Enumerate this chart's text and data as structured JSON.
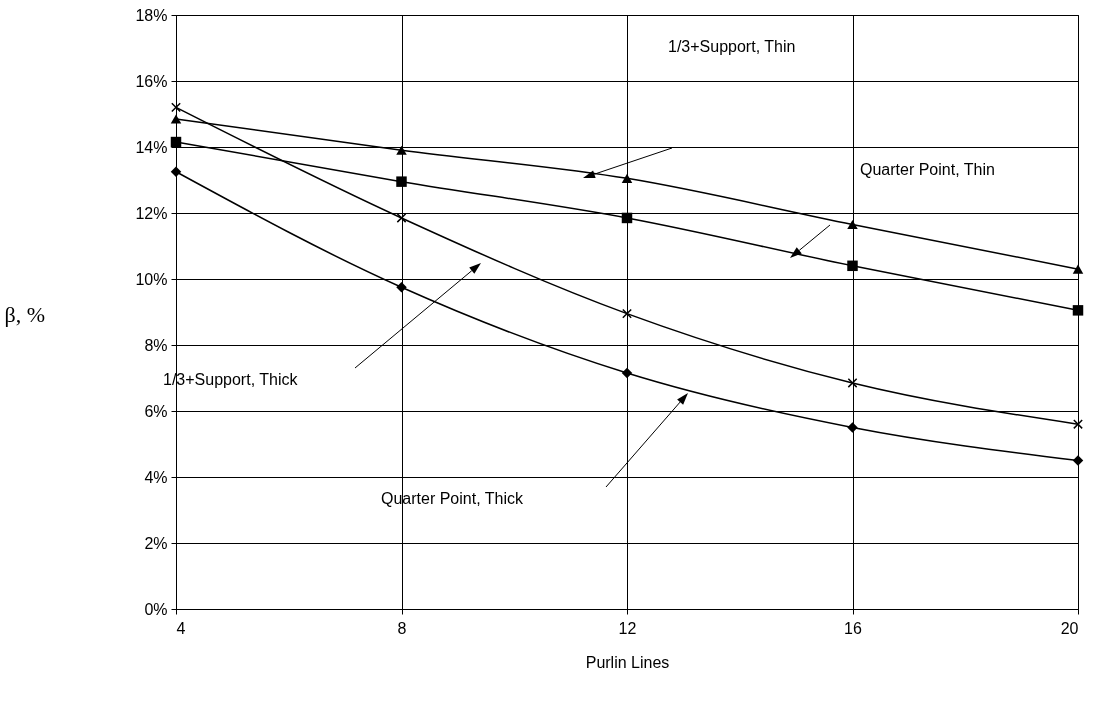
{
  "chart_data": {
    "type": "line",
    "xlabel": "Purlin Lines",
    "ylabel": "β, %",
    "x": [
      4,
      8,
      12,
      16,
      20
    ],
    "series": [
      {
        "color": "#000000",
        "marker": "triangle",
        "values": [
          14.85,
          13.9,
          13.05,
          11.65,
          10.3
        ]
      },
      {
        "color": "#000000",
        "marker": "square",
        "values": [
          14.15,
          12.95,
          11.85,
          10.4,
          9.05
        ]
      },
      {
        "color": "#000000",
        "marker": "cross",
        "values": [
          15.2,
          11.85,
          8.95,
          6.85,
          5.6
        ]
      },
      {
        "color": "#000000",
        "marker": "diamond",
        "values": [
          13.25,
          9.75,
          7.15,
          5.5,
          4.5
        ]
      }
    ],
    "xlim": [
      4,
      20
    ],
    "xticks": [
      4,
      8,
      12,
      16,
      20
    ],
    "ylim": [
      0,
      18
    ],
    "yticks": [
      {
        "value": 0,
        "label": "0%"
      },
      {
        "value": 2,
        "label": "2%"
      },
      {
        "value": 4,
        "label": "4%"
      },
      {
        "value": 6,
        "label": "6%"
      },
      {
        "value": 8,
        "label": "8%"
      },
      {
        "value": 10,
        "label": "10%"
      },
      {
        "value": 12,
        "label": "12%"
      },
      {
        "value": 14,
        "label": "14%"
      },
      {
        "value": 16,
        "label": "16%"
      },
      {
        "value": 18,
        "label": "18%"
      }
    ],
    "grid": true,
    "annotations": [
      "1/3+Support, Thin",
      "Quarter Point, Thin",
      "1/3+Support, Thick",
      "Quarter Point, Thick"
    ]
  }
}
